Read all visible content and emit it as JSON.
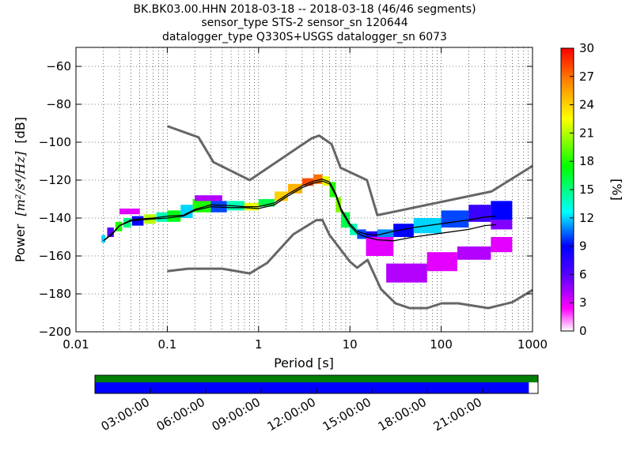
{
  "chart_data": {
    "type": "heatmap",
    "title_lines": [
      "BK.BK03.00.HHN   2018-03-18 -- 2018-03-18  (46/46 segments)",
      "sensor_type STS-2 sensor_sn 120644",
      "datalogger_type Q330S+USGS datalogger_sn 6073"
    ],
    "xlabel": "Period [s]",
    "ylabel_text": "Power",
    "ylabel_math": "[m²/s⁴/Hz]",
    "ylabel_unit": "[dB]",
    "x_scale": "log",
    "xlim": [
      0.01,
      1000
    ],
    "ylim": [
      -200,
      -50
    ],
    "x_ticks": [
      0.01,
      0.1,
      1,
      10,
      100,
      1000
    ],
    "x_tick_labels": [
      "0.01",
      "0.1",
      "1",
      "10",
      "100",
      "1000"
    ],
    "y_ticks": [
      -200,
      -180,
      -160,
      -140,
      -120,
      -100,
      -80,
      -60
    ],
    "y_tick_labels": [
      "−200",
      "−180",
      "−160",
      "−140",
      "−120",
      "−100",
      "−80",
      "−60"
    ],
    "grid": "dotted minor and major period grid",
    "colorbar": {
      "label": "[%]",
      "range": [
        0,
        30
      ],
      "ticks": [
        0,
        3,
        6,
        9,
        12,
        15,
        18,
        21,
        24,
        27,
        30
      ],
      "colors": [
        "#ffffff",
        "#ff00ff",
        "#5500ff",
        "#0000ff",
        "#00ffff",
        "#00ff00",
        "#ffff00",
        "#ff8800",
        "#ff0000"
      ]
    },
    "noise_model_high": {
      "period": [
        0.1,
        0.22,
        0.32,
        0.8,
        3.8,
        4.6,
        6.3,
        7.9,
        15.4,
        20,
        354.8,
        1000
      ],
      "power": [
        -91.5,
        -97.4,
        -110.5,
        -120,
        -98,
        -96.5,
        -101,
        -113.5,
        -120,
        -138.5,
        -126,
        -112.5
      ]
    },
    "noise_model_low": {
      "period": [
        0.1,
        0.17,
        0.4,
        0.8,
        1.24,
        2.4,
        4.3,
        5,
        6,
        10,
        12,
        15.6,
        21.9,
        31.6,
        45,
        70,
        101,
        154,
        328,
        600,
        1000
      ],
      "power": [
        -168,
        -166.7,
        -166.7,
        -169.2,
        -163.7,
        -148.6,
        -141.1,
        -141.1,
        -149,
        -163,
        -166.2,
        -162.1,
        -177.5,
        -185,
        -187.5,
        -187.5,
        -185,
        -185,
        -187.5,
        -184.4,
        -178
      ]
    },
    "mean_curve": {
      "period": [
        0.02,
        0.025,
        0.03,
        0.04,
        0.05,
        0.07,
        0.1,
        0.15,
        0.2,
        0.3,
        0.5,
        0.7,
        1,
        1.5,
        2,
        3,
        4,
        5,
        6,
        7,
        8,
        10,
        12,
        15,
        20,
        30,
        50,
        100,
        200,
        300,
        400
      ],
      "power": [
        -152,
        -148,
        -144,
        -141,
        -140.5,
        -140,
        -139,
        -138.5,
        -135.5,
        -133,
        -133.5,
        -134,
        -134,
        -132,
        -128,
        -123,
        -120.5,
        -119.5,
        -121,
        -127,
        -135,
        -143,
        -147,
        -148.5,
        -149,
        -147,
        -145,
        -143,
        -141,
        -139.5,
        -139
      ]
    },
    "median_curve": {
      "period": [
        0.02,
        0.025,
        0.03,
        0.04,
        0.05,
        0.07,
        0.1,
        0.15,
        0.2,
        0.3,
        0.5,
        0.7,
        1,
        1.5,
        2,
        3,
        4,
        5,
        6,
        7,
        8,
        10,
        12,
        15,
        20,
        30,
        50,
        100,
        200,
        300,
        400
      ],
      "power": [
        -152,
        -148.5,
        -144,
        -141.5,
        -141,
        -140.5,
        -140,
        -139,
        -136,
        -134,
        -134.5,
        -134.5,
        -135,
        -133,
        -129,
        -124,
        -121.5,
        -120.5,
        -122,
        -128,
        -136,
        -144,
        -148,
        -150,
        -151.5,
        -152,
        -150,
        -148,
        -146,
        -144,
        -143.5
      ]
    },
    "psd_cells": [
      [
        0.019,
        0.021,
        -153,
        -149,
        12
      ],
      [
        0.022,
        0.026,
        -150,
        -145,
        6
      ],
      [
        0.027,
        0.032,
        -147,
        -142,
        18
      ],
      [
        0.033,
        0.04,
        -145,
        -140,
        15
      ],
      [
        0.041,
        0.055,
        -144,
        -139,
        9
      ],
      [
        0.056,
        0.075,
        -143,
        -138,
        21
      ],
      [
        0.076,
        0.1,
        -142,
        -137,
        14
      ],
      [
        0.1,
        0.14,
        -142,
        -136,
        17
      ],
      [
        0.14,
        0.19,
        -140,
        -133,
        12
      ],
      [
        0.19,
        0.3,
        -137,
        -130,
        18
      ],
      [
        0.3,
        0.45,
        -137,
        -131,
        10
      ],
      [
        0.45,
        0.7,
        -136,
        -131,
        14
      ],
      [
        0.7,
        1.0,
        -136,
        -132,
        22
      ],
      [
        1.0,
        1.5,
        -134,
        -130,
        16
      ],
      [
        1.5,
        2.1,
        -131,
        -126,
        24
      ],
      [
        2.1,
        3.0,
        -127,
        -122,
        25
      ],
      [
        3.0,
        4.0,
        -123,
        -119,
        28
      ],
      [
        4.0,
        5.0,
        -122,
        -117,
        27
      ],
      [
        5.0,
        6.0,
        -123,
        -118,
        22
      ],
      [
        6.0,
        7.0,
        -129,
        -121,
        18
      ],
      [
        7.0,
        8.0,
        -137,
        -129,
        20
      ],
      [
        8.0,
        10.0,
        -145,
        -137,
        16
      ],
      [
        10.0,
        12.0,
        -149,
        -143,
        14
      ],
      [
        12.0,
        15.0,
        -151,
        -146,
        10
      ],
      [
        15.0,
        20.0,
        -152,
        -147,
        8
      ],
      [
        20.0,
        30.0,
        -152,
        -146,
        11
      ],
      [
        30.0,
        50.0,
        -150,
        -143,
        9
      ],
      [
        50.0,
        100.0,
        -148,
        -140,
        12
      ],
      [
        100.0,
        200.0,
        -145,
        -136,
        10
      ],
      [
        200.0,
        350.0,
        -142,
        -133,
        7
      ],
      [
        350.0,
        600.0,
        -141,
        -131,
        9
      ],
      [
        0.03,
        0.05,
        -138,
        -135,
        3
      ],
      [
        0.2,
        0.4,
        -131,
        -128,
        4
      ],
      [
        15.0,
        30.0,
        -160,
        -150,
        3
      ],
      [
        25.0,
        70.0,
        -174,
        -164,
        4
      ],
      [
        70.0,
        150.0,
        -168,
        -158,
        3
      ],
      [
        150.0,
        350.0,
        -162,
        -155,
        4
      ],
      [
        350.0,
        600.0,
        -158,
        -150,
        3
      ],
      [
        350.0,
        600.0,
        -146,
        -141,
        5
      ]
    ],
    "time_axis": {
      "tick_labels": [
        "03:00:00",
        "06:00:00",
        "09:00:00",
        "12:00:00",
        "15:00:00",
        "18:00:00",
        "21:00:00"
      ],
      "tick_hours": [
        3,
        6,
        9,
        12,
        15,
        18,
        21
      ],
      "range_hours": [
        0,
        24
      ],
      "coverage_end_hour": 23.5,
      "coverage_color": "#0000ff",
      "data_color": "#008000"
    }
  }
}
